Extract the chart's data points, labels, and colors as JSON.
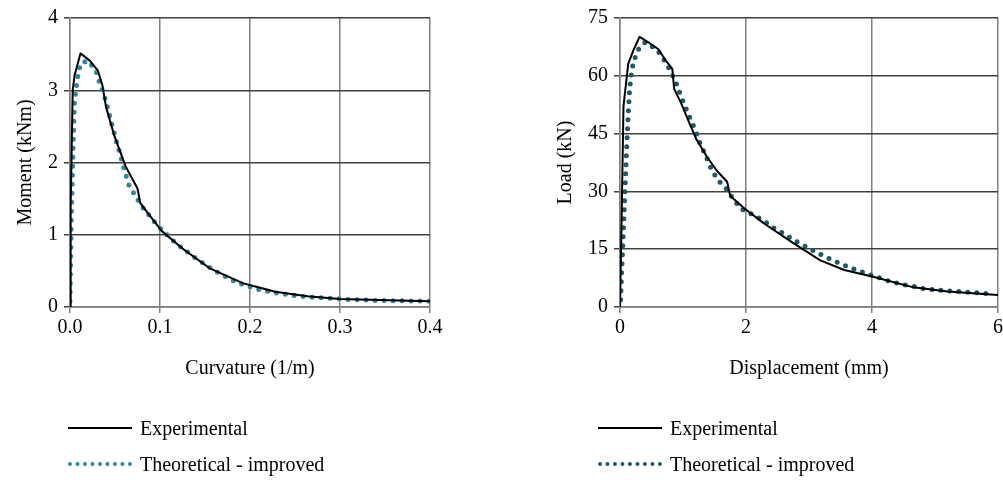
{
  "chart_data": [
    {
      "type": "line",
      "xlabel": "Curvature (1/m)",
      "ylabel": "Moment (kNm)",
      "xlim": [
        0,
        0.4
      ],
      "xticks": [
        {
          "value": 0,
          "label": "0.0"
        },
        0.1,
        0.2,
        0.3,
        0.4
      ],
      "ylim": [
        0,
        4
      ],
      "yticks": [
        0,
        1,
        2,
        3,
        4
      ],
      "grid": true,
      "legend": "bottom",
      "marker": "none",
      "series": [
        {
          "name": "Experimental",
          "color": "#000000",
          "line_style": "solid",
          "x": [
            0,
            0.0007,
            0.003,
            0.005,
            0.0116,
            0.022,
            0.031,
            0.036,
            0.04,
            0.049,
            0.062,
            0.075,
            0.078,
            0.084,
            0.102,
            0.127,
            0.156,
            0.192,
            0.228,
            0.264,
            0.3,
            0.4
          ],
          "values": [
            0,
            1.38,
            3.0,
            3.2,
            3.51,
            3.41,
            3.27,
            3.07,
            2.77,
            2.38,
            1.94,
            1.64,
            1.44,
            1.34,
            1.05,
            0.79,
            0.53,
            0.33,
            0.21,
            0.15,
            0.11,
            0.08
          ]
        },
        {
          "name": "Theoretical - improved",
          "color": "#31859c",
          "line_style": "dotted",
          "x": [
            0,
            0.0007,
            0.0014,
            0.0025,
            0.0036,
            0.005,
            0.0065,
            0.0085,
            0.0116,
            0.0195,
            0.0285,
            0.033,
            0.038,
            0.042,
            0.049,
            0.057,
            0.065,
            0.072,
            0.08,
            0.097,
            0.117,
            0.139,
            0.161,
            0.185,
            0.21,
            0.236,
            0.263,
            0.29,
            0.316,
            0.343,
            0.4
          ],
          "values": [
            0.08,
            0.63,
            1.18,
            1.73,
            2.28,
            2.83,
            3.0,
            3.18,
            3.37,
            3.41,
            3.28,
            3.1,
            2.93,
            2.75,
            2.41,
            2.05,
            1.7,
            1.55,
            1.39,
            1.13,
            0.89,
            0.68,
            0.5,
            0.34,
            0.24,
            0.18,
            0.14,
            0.12,
            0.1,
            0.09,
            0.08
          ]
        }
      ]
    },
    {
      "type": "line",
      "xlabel": "Displacement (mm)",
      "ylabel": "Load (kN)",
      "xlim": [
        0,
        6
      ],
      "xticks": [
        0,
        2,
        4,
        6
      ],
      "ylim": [
        0,
        75
      ],
      "yticks": [
        0,
        15,
        30,
        45,
        60,
        75
      ],
      "grid": true,
      "legend": "bottom",
      "marker": "none",
      "series": [
        {
          "name": "Experimental",
          "color": "#000000",
          "line_style": "solid",
          "x": [
            0,
            0.027,
            0.055,
            0.13,
            0.22,
            0.31,
            0.45,
            0.61,
            0.72,
            0.83,
            0.86,
            0.97,
            1.1,
            1.21,
            1.38,
            1.54,
            1.7,
            1.75,
            1.98,
            2.31,
            2.74,
            3.18,
            3.56,
            4.0,
            4.66,
            5.2,
            6.0
          ],
          "values": [
            0,
            24.1,
            52,
            63.1,
            66.9,
            70.1,
            68.7,
            66.9,
            64.1,
            61.8,
            56.6,
            52.9,
            47.8,
            43.6,
            39,
            35.3,
            32.5,
            28.8,
            25.5,
            21.4,
            16.7,
            12.1,
            9.6,
            7.9,
            5.1,
            4.0,
            3.1
          ]
        },
        {
          "name": "Theoretical - improved",
          "color": "#215868",
          "line_style": "dotted",
          "x": [
            0.01,
            0.027,
            0.044,
            0.06,
            0.077,
            0.093,
            0.11,
            0.13,
            0.153,
            0.175,
            0.21,
            0.28,
            0.4,
            0.58,
            0.7,
            0.8,
            0.89,
            0.96,
            1.04,
            1.12,
            1.2,
            1.27,
            1.36,
            1.44,
            1.54,
            1.68,
            1.8,
            1.92,
            2.1,
            2.27,
            2.45,
            2.62,
            2.8,
            2.97,
            3.15,
            3.33,
            3.52,
            3.71,
            3.9,
            4.09,
            4.28,
            4.48,
            4.68,
            4.87,
            5.07,
            5.27,
            5.48,
            5.67,
            5.87
          ],
          "values": [
            1.9,
            9.3,
            15.8,
            22.6,
            29.2,
            36.2,
            42.7,
            49.7,
            56.6,
            59.9,
            63.3,
            66.6,
            68.7,
            66.9,
            64.1,
            61.3,
            58.2,
            55,
            51.8,
            48.7,
            45.7,
            42.5,
            39.3,
            36.2,
            33.2,
            30.8,
            28,
            25.5,
            24,
            22.5,
            20.4,
            18.8,
            17,
            15.5,
            13.9,
            12.5,
            11.1,
            9.9,
            8.8,
            7.7,
            6.7,
            5.8,
            5.3,
            4.6,
            4.4,
            4.1,
            3.9,
            3.7,
            3.4
          ]
        }
      ]
    }
  ]
}
